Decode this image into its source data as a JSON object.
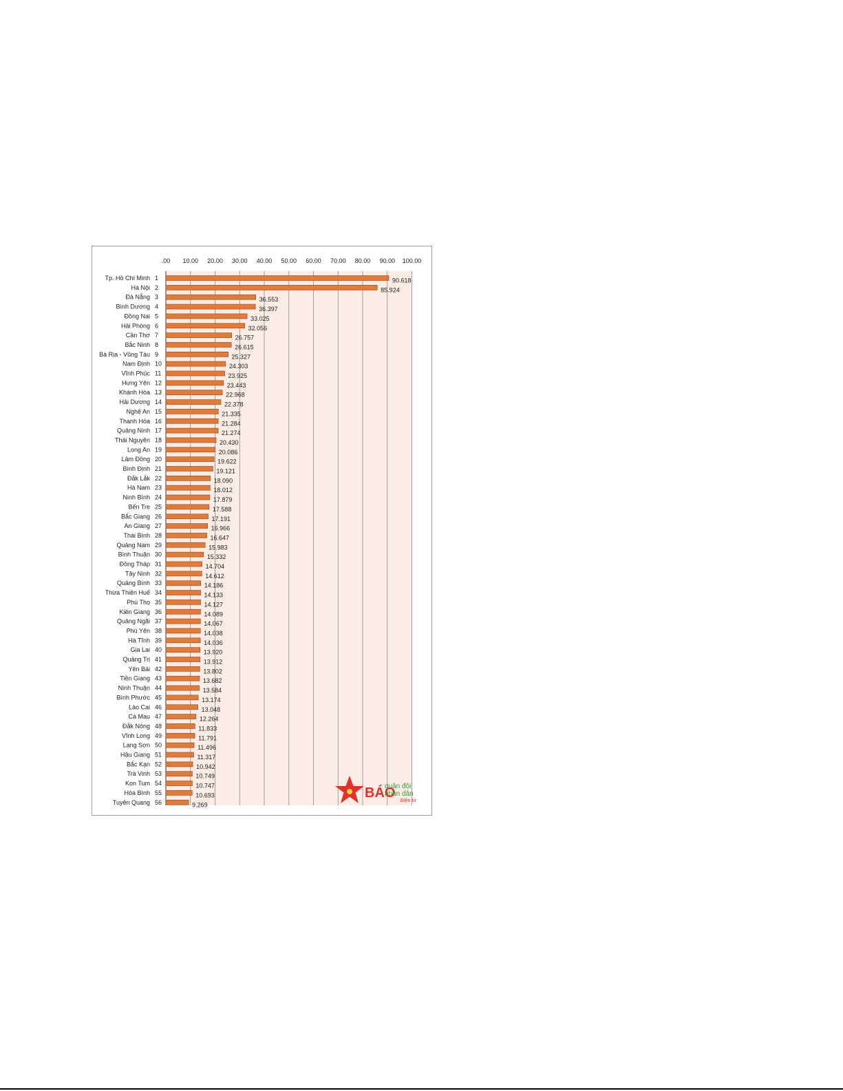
{
  "chart_data": {
    "type": "bar",
    "orientation": "horizontal",
    "title": "",
    "xlabel": "",
    "ylabel": "",
    "xlim": [
      0,
      100
    ],
    "x_tick_labels": [
      ".00",
      "10.00",
      "20.00",
      "30.00",
      "40.00",
      "50.00",
      "60.00",
      "70.00",
      "80.00",
      "90.00",
      "100.00"
    ],
    "x_ticks": [
      0,
      10,
      20,
      30,
      40,
      50,
      60,
      70,
      80,
      90,
      100
    ],
    "axis_position": "top",
    "grid": true,
    "bar_color": "#e07b3c",
    "bar_edge_color": "#a54f1f",
    "plot_background": "#fbece6",
    "categories": [
      "Tp. Hồ Chí Minh",
      "Hà Nội",
      "Đà Nẵng",
      "Bình Dương",
      "Đồng Nai",
      "Hải Phòng",
      "Cần Thơ",
      "Bắc Ninh",
      "Bà Rịa - Vũng Tàu",
      "Nam Định",
      "Vĩnh Phúc",
      "Hưng Yên",
      "Khánh Hòa",
      "Hải Dương",
      "Nghệ An",
      "Thanh Hóa",
      "Quảng Ninh",
      "Thái Nguyên",
      "Long An",
      "Lâm Đồng",
      "Bình Định",
      "Đắk Lắk",
      "Hà Nam",
      "Ninh Bình",
      "Bến Tre",
      "Bắc Giang",
      "An Giang",
      "Thái Bình",
      "Quảng Nam",
      "Bình Thuận",
      "Đồng Tháp",
      "Tây Ninh",
      "Quảng Bình",
      "Thừa Thiên Huế",
      "Phú Thọ",
      "Kiên Giang",
      "Quảng Ngãi",
      "Phú Yên",
      "Hà Tĩnh",
      "Gia Lai",
      "Quảng Trị",
      "Yên Bái",
      "Tiền Giang",
      "Ninh Thuận",
      "Bình Phước",
      "Lào Cai",
      "Cà Mau",
      "Đắk Nông",
      "Vĩnh Long",
      "Lạng Sơn",
      "Hậu Giang",
      "Bắc Kạn",
      "Trà Vinh",
      "Kon Tum",
      "Hòa Bình",
      "Tuyên Quang"
    ],
    "ranks": [
      "1",
      "2",
      "3",
      "4",
      "5",
      "6",
      "7",
      "8",
      "9",
      "10",
      "11",
      "12",
      "13",
      "14",
      "15",
      "16",
      "17",
      "18",
      "19",
      "20",
      "21",
      "22",
      "23",
      "24",
      "25",
      "26",
      "27",
      "28",
      "29",
      "30",
      "31",
      "32",
      "33",
      "34",
      "35",
      "36",
      "37",
      "38",
      "39",
      "40",
      "41",
      "42",
      "43",
      "44",
      "45",
      "46",
      "47",
      "48",
      "49",
      "50",
      "51",
      "52",
      "53",
      "54",
      "55",
      "56"
    ],
    "values": [
      90.618,
      85.924,
      36.553,
      36.397,
      33.025,
      32.056,
      26.757,
      26.615,
      25.327,
      24.303,
      23.925,
      23.443,
      22.968,
      22.378,
      21.335,
      21.284,
      21.274,
      20.43,
      20.086,
      19.622,
      19.121,
      18.09,
      18.012,
      17.879,
      17.588,
      17.191,
      16.966,
      16.647,
      15.983,
      15.332,
      14.704,
      14.612,
      14.186,
      14.133,
      14.127,
      14.089,
      14.067,
      14.038,
      14.036,
      13.92,
      13.912,
      13.802,
      13.682,
      13.584,
      13.174,
      13.048,
      12.264,
      11.833,
      11.791,
      11.496,
      11.317,
      10.942,
      10.749,
      10.747,
      10.693,
      9.269
    ],
    "value_labels": [
      "90.618",
      "85.924",
      "36.553",
      "36.397",
      "33.025",
      "32.056",
      "26.757",
      "26.615",
      "25.327",
      "24.303",
      "23.925",
      "23.443",
      "22.968",
      "22.378",
      "21.335",
      "21.284",
      "21.274",
      "20.430",
      "20.086",
      "19.622",
      "19.121",
      "18.090",
      "18.012",
      "17.879",
      "17.588",
      "17.191",
      "16.966",
      "16.647",
      "15.983",
      "15.332",
      "14.704",
      "14.612",
      "14.186",
      "14.133",
      "14.127",
      "14.089",
      "14.067",
      "14.038",
      "14.036",
      "13.920",
      "13.912",
      "13.802",
      "13.682",
      "13.584",
      "13.174",
      "13.048",
      "12.264",
      "11.833",
      "11.791",
      "11.496",
      "11.317",
      "10.942",
      "10.749",
      "10.747",
      "10.693",
      "9.269"
    ]
  },
  "watermark": {
    "big": "BÁO",
    "line1": "quân đội",
    "line2": "nhân dân",
    "line3": "Điện tử",
    "star_color": "#e0312b"
  }
}
